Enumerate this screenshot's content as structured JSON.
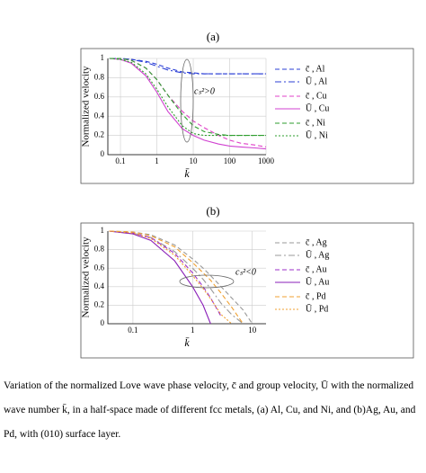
{
  "chart_data": [
    {
      "type": "line",
      "panel": "(a)",
      "xlabel": "k̄",
      "ylabel": "Normalized velocity",
      "xscale": "log",
      "xlim": [
        0.045,
        1000
      ],
      "xticks": [
        0.1,
        1,
        10,
        100,
        1000
      ],
      "ylim": [
        0,
        1
      ],
      "yticks": [
        0,
        0.2,
        0.4,
        0.6,
        0.8,
        1
      ],
      "grid": true,
      "legend": "right",
      "annotation": "cₛ²>0",
      "x": [
        0.05,
        0.1,
        0.2,
        0.5,
        1,
        2,
        5,
        10,
        20,
        50,
        100,
        200,
        500,
        1000
      ],
      "series": [
        {
          "name": "c̄ , Al",
          "color": "#2b3fd6",
          "style": "dashed",
          "values": [
            1,
            1,
            0.99,
            0.97,
            0.94,
            0.9,
            0.86,
            0.85,
            0.84,
            0.84,
            0.84,
            0.84,
            0.84,
            0.84
          ]
        },
        {
          "name": "Ū , Al",
          "color": "#2b3fd6",
          "style": "dashdot",
          "values": [
            1,
            1,
            0.99,
            0.96,
            0.92,
            0.88,
            0.85,
            0.84,
            0.84,
            0.84,
            0.84,
            0.84,
            0.84,
            0.84
          ]
        },
        {
          "name": "c̄ , Cu",
          "color": "#e040c8",
          "style": "dashed",
          "values": [
            1,
            1,
            0.98,
            0.9,
            0.78,
            0.62,
            0.45,
            0.35,
            0.28,
            0.2,
            0.15,
            0.12,
            0.1,
            0.08
          ]
        },
        {
          "name": "Ū , Cu",
          "color": "#d040d0",
          "style": "solid",
          "values": [
            1,
            0.99,
            0.95,
            0.82,
            0.65,
            0.45,
            0.27,
            0.2,
            0.15,
            0.11,
            0.09,
            0.08,
            0.07,
            0.06
          ]
        },
        {
          "name": "c̄ , Ni",
          "color": "#2e9e2e",
          "style": "dashed",
          "values": [
            1,
            1,
            0.98,
            0.9,
            0.78,
            0.62,
            0.42,
            0.3,
            0.24,
            0.21,
            0.2,
            0.2,
            0.2,
            0.2
          ]
        },
        {
          "name": "Ū , Ni",
          "color": "#2e9e2e",
          "style": "dotted",
          "values": [
            1,
            0.99,
            0.96,
            0.84,
            0.68,
            0.5,
            0.3,
            0.22,
            0.2,
            0.2,
            0.2,
            0.2,
            0.2,
            0.2
          ]
        }
      ]
    },
    {
      "type": "line",
      "panel": "(b)",
      "xlabel": "k̄",
      "ylabel": "Normalized velocity",
      "xscale": "log",
      "xlim": [
        0.038,
        17
      ],
      "xticks": [
        0.1,
        1,
        10
      ],
      "ylim": [
        0,
        1
      ],
      "yticks": [
        0,
        0.2,
        0.4,
        0.6,
        0.8,
        1
      ],
      "grid": true,
      "legend": "right",
      "annotation": "cₛ²<0",
      "x": [
        0.04,
        0.1,
        0.2,
        0.5,
        1,
        1.5,
        2,
        3,
        4.5,
        7,
        10
      ],
      "series": [
        {
          "name": "c̄ , Ag",
          "color": "#999999",
          "style": "dashed",
          "values": [
            1,
            0.99,
            0.96,
            0.85,
            0.7,
            0.6,
            0.52,
            0.4,
            0.28,
            0.15,
            0
          ]
        },
        {
          "name": "Ū , Ag",
          "color": "#999999",
          "style": "dashdot",
          "values": [
            1,
            0.98,
            0.93,
            0.78,
            0.6,
            0.48,
            0.38,
            0.22,
            0.1,
            0,
            null
          ]
        },
        {
          "name": "c̄ , Au",
          "color": "#9b2fc8",
          "style": "dashed",
          "values": [
            1,
            0.98,
            0.93,
            0.76,
            0.55,
            0.4,
            0.28,
            0.08,
            null,
            null,
            null
          ]
        },
        {
          "name": "Ū , Au",
          "color": "#8a1fb8",
          "style": "solid",
          "values": [
            1,
            0.97,
            0.9,
            0.68,
            0.4,
            0.2,
            0,
            null,
            null,
            null,
            null
          ]
        },
        {
          "name": "c̄ , Pd",
          "color": "#f0a030",
          "style": "dashed",
          "values": [
            1,
            0.99,
            0.95,
            0.83,
            0.66,
            0.55,
            0.47,
            0.33,
            0.18,
            0,
            null
          ]
        },
        {
          "name": "Ū , Pd",
          "color": "#f0a030",
          "style": "dotted",
          "values": [
            1,
            0.98,
            0.92,
            0.74,
            0.52,
            0.38,
            0.27,
            0.1,
            0,
            null,
            null
          ]
        }
      ]
    }
  ],
  "caption": "Variation of the normalized Love wave phase velocity, c̄ and group velocity, Ū with the normalized wave number k̄, in a half-space made of different fcc metals, (a) Al, Cu, and Ni, and (b)Ag, Au, and Pd, with (010) surface layer."
}
